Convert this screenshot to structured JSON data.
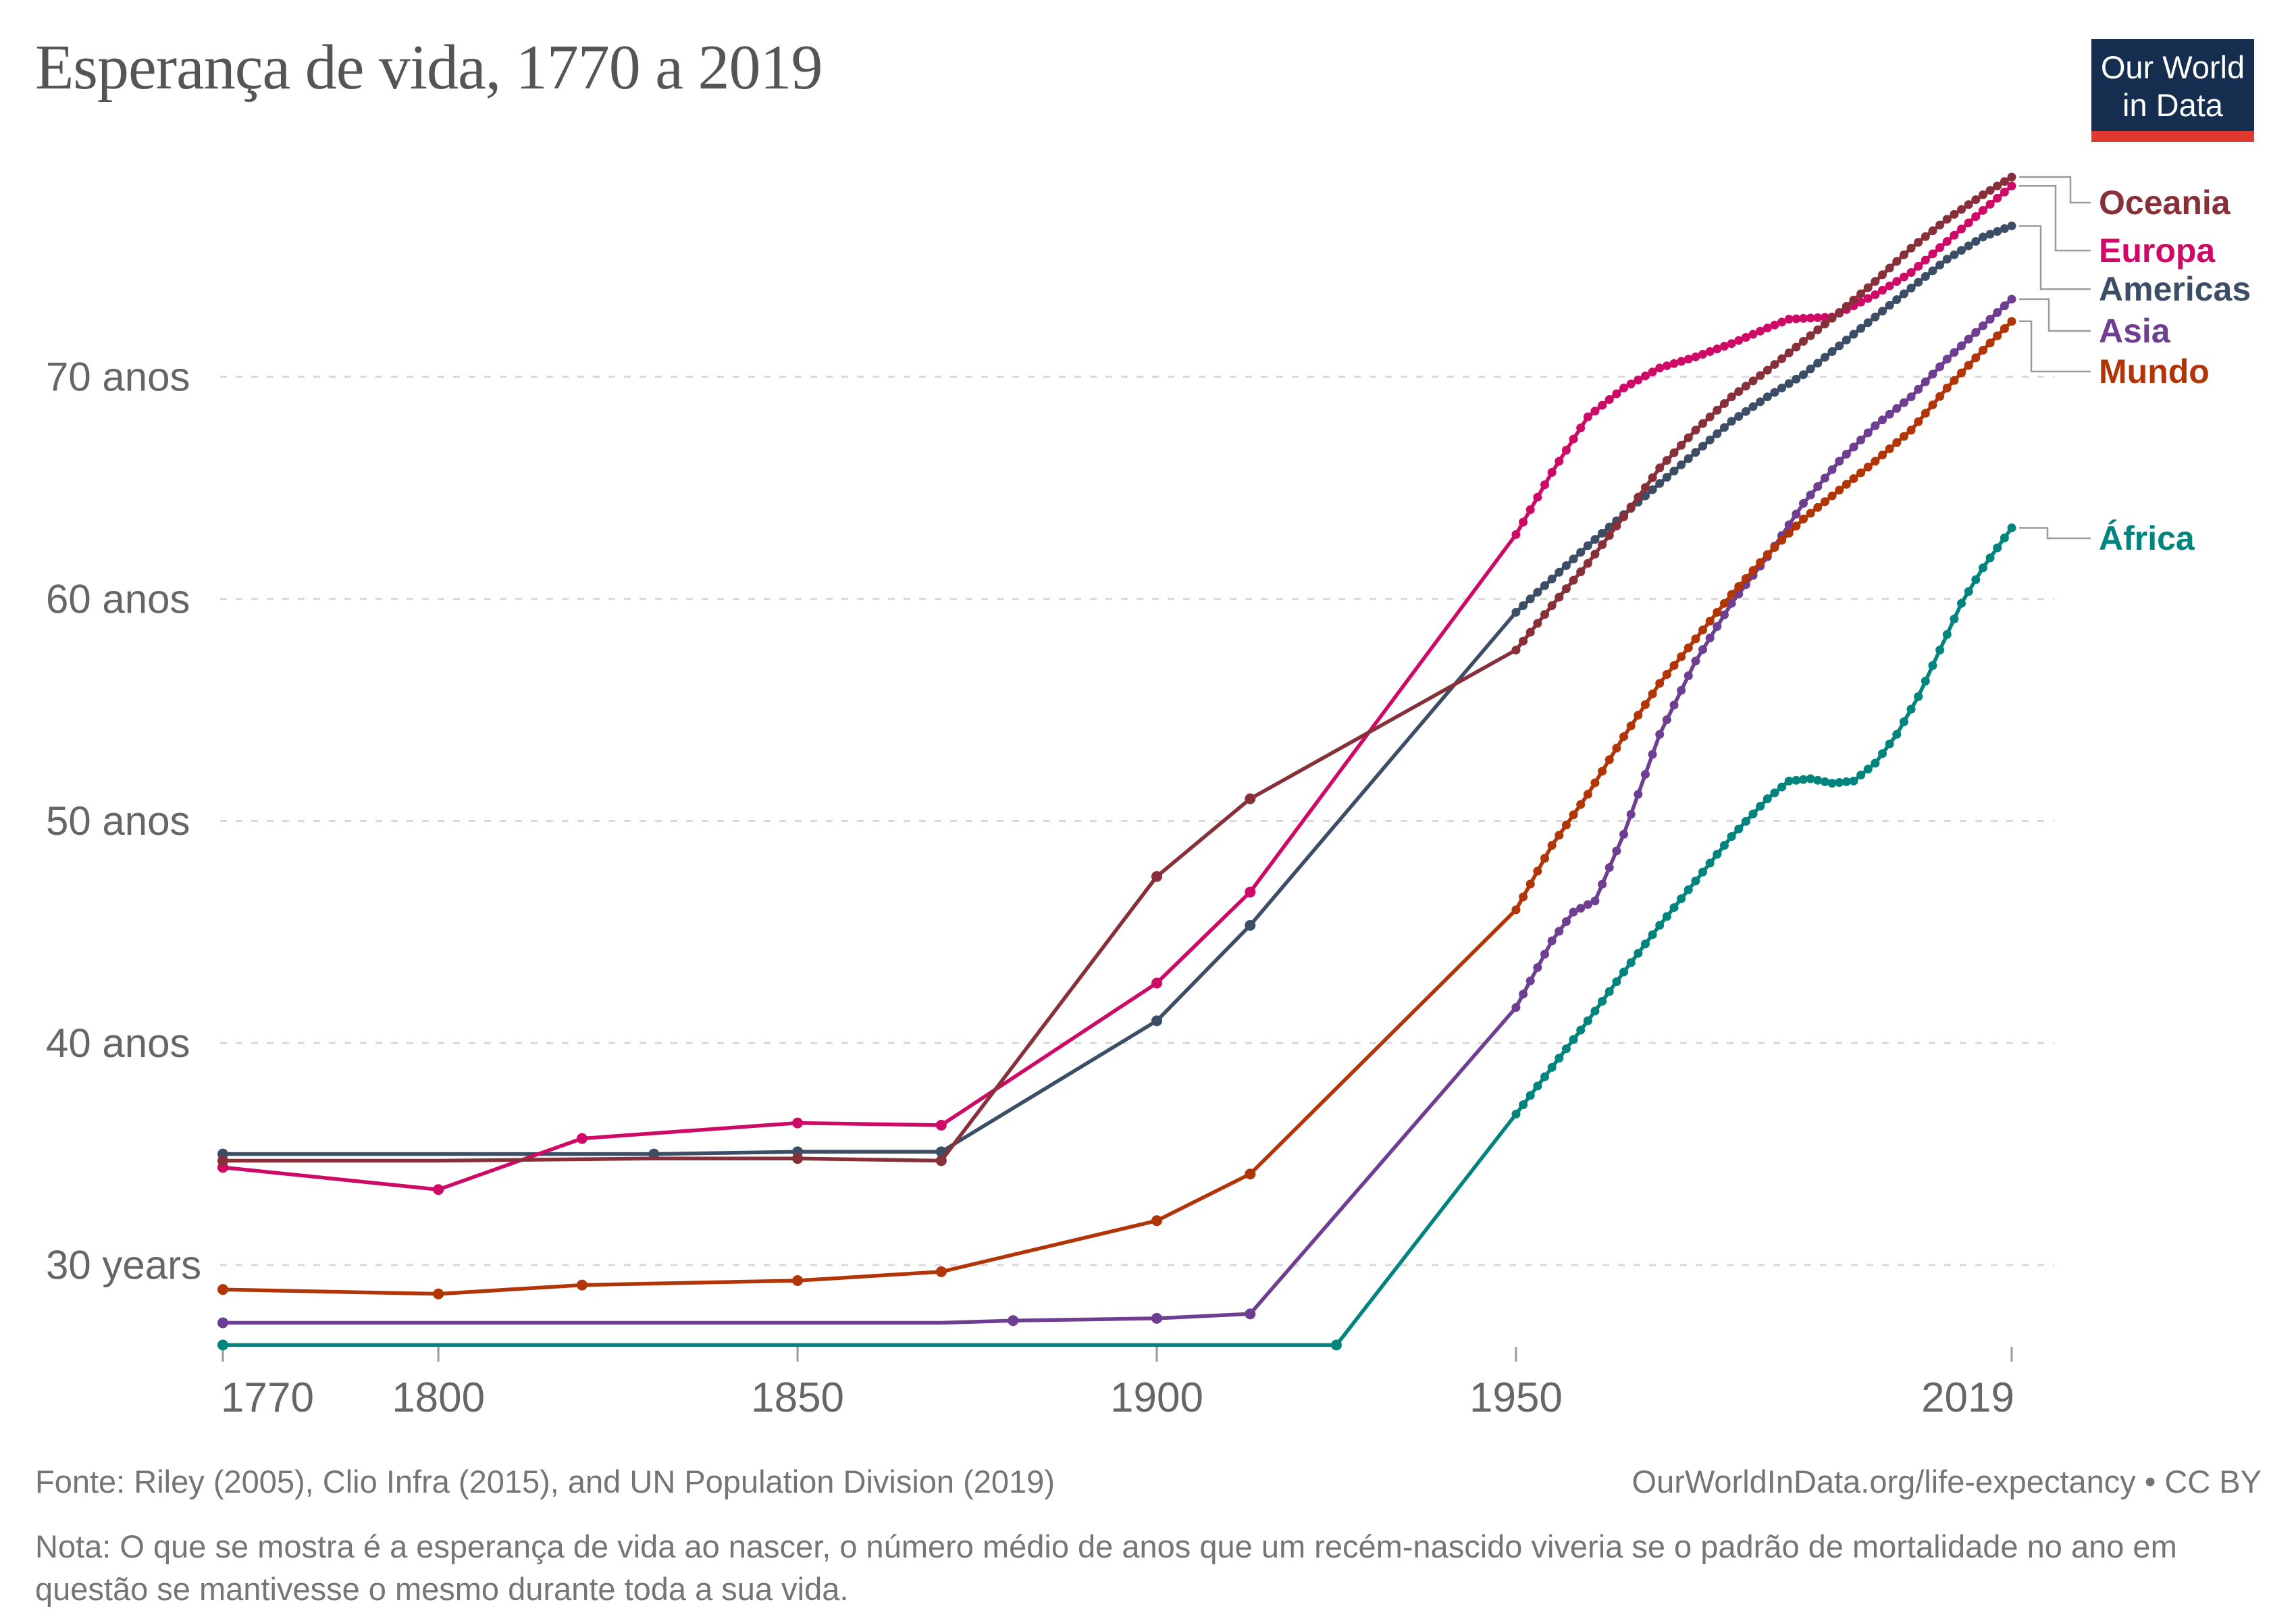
{
  "title": "Esperança de vida, 1770 a 2019",
  "logo": {
    "line1": "Our World",
    "line2": "in Data"
  },
  "footer": {
    "source": "Fonte: Riley (2005), Clio Infra (2015), and UN Population Division (2019)",
    "link": "OurWorldInData.org/life-expectancy • CC BY",
    "note": "Nota: O que se mostra é a esperança de vida ao nascer, o número médio de anos que um recém-nascido viveria se o padrão de mortalidade no ano em questão se mantivesse o mesmo durante toda a sua vida."
  },
  "chart_data": {
    "type": "line",
    "title": "Esperança de vida, 1770 a 2019",
    "xlabel": "",
    "ylabel": "",
    "xlim": [
      1770,
      2019
    ],
    "ylim": [
      26,
      80
    ],
    "grid": "dashed-horizontal",
    "legend_position": "right",
    "x_ticks": [
      {
        "year": 1770,
        "label": "1770"
      },
      {
        "year": 1800,
        "label": "1800"
      },
      {
        "year": 1850,
        "label": "1850"
      },
      {
        "year": 1900,
        "label": "1900"
      },
      {
        "year": 1950,
        "label": "1950"
      },
      {
        "year": 2019,
        "label": "2019"
      }
    ],
    "y_ticks": [
      {
        "value": 30,
        "label": "30 years"
      },
      {
        "value": 40,
        "label": "40 anos"
      },
      {
        "value": 50,
        "label": "50 anos"
      },
      {
        "value": 60,
        "label": "60 anos"
      },
      {
        "value": 70,
        "label": "70 anos"
      }
    ],
    "series": [
      {
        "id": "oceania",
        "name": "Oceania",
        "color": "#883039",
        "pre_dot_years": [
          1770,
          1850,
          1870,
          1900,
          1913
        ],
        "points": [
          [
            1770,
            34.7
          ],
          [
            1800,
            34.7
          ],
          [
            1830,
            34.8
          ],
          [
            1850,
            34.8
          ],
          [
            1870,
            34.7
          ],
          [
            1900,
            47.5
          ],
          [
            1913,
            51.0
          ],
          [
            1950,
            57.7
          ],
          [
            1955,
            59.7
          ],
          [
            1960,
            61.6
          ],
          [
            1965,
            63.7
          ],
          [
            1970,
            65.9
          ],
          [
            1975,
            67.6
          ],
          [
            1980,
            69.1
          ],
          [
            1985,
            70.3
          ],
          [
            1990,
            71.6
          ],
          [
            1995,
            72.9
          ],
          [
            2000,
            74.3
          ],
          [
            2005,
            75.8
          ],
          [
            2010,
            77.1
          ],
          [
            2015,
            78.2
          ],
          [
            2019,
            79.0
          ]
        ]
      },
      {
        "id": "europa",
        "name": "Europa",
        "color": "#CF0A66",
        "pre_dot_years": [
          1770,
          1800,
          1820,
          1850,
          1870,
          1900,
          1913
        ],
        "points": [
          [
            1770,
            34.4
          ],
          [
            1800,
            33.4
          ],
          [
            1820,
            35.7
          ],
          [
            1850,
            36.4
          ],
          [
            1870,
            36.3
          ],
          [
            1900,
            42.7
          ],
          [
            1913,
            46.8
          ],
          [
            1950,
            62.9
          ],
          [
            1955,
            65.7
          ],
          [
            1960,
            68.2
          ],
          [
            1965,
            69.5
          ],
          [
            1970,
            70.4
          ],
          [
            1975,
            70.9
          ],
          [
            1980,
            71.5
          ],
          [
            1985,
            72.2
          ],
          [
            1988,
            72.6
          ],
          [
            1994,
            72.7
          ],
          [
            1997,
            73.2
          ],
          [
            2000,
            73.7
          ],
          [
            2005,
            74.7
          ],
          [
            2010,
            76.1
          ],
          [
            2015,
            77.5
          ],
          [
            2019,
            78.6
          ]
        ]
      },
      {
        "id": "americas",
        "name": "Americas",
        "color": "#3C4E66",
        "pre_dot_years": [
          1770,
          1830,
          1850,
          1870,
          1900,
          1913
        ],
        "points": [
          [
            1770,
            35.0
          ],
          [
            1800,
            35.0
          ],
          [
            1830,
            35.0
          ],
          [
            1850,
            35.1
          ],
          [
            1870,
            35.1
          ],
          [
            1900,
            41.0
          ],
          [
            1913,
            45.3
          ],
          [
            1950,
            59.4
          ],
          [
            1955,
            60.9
          ],
          [
            1960,
            62.4
          ],
          [
            1965,
            63.8
          ],
          [
            1970,
            65.2
          ],
          [
            1975,
            66.6
          ],
          [
            1980,
            68.0
          ],
          [
            1985,
            69.1
          ],
          [
            1990,
            70.1
          ],
          [
            1995,
            71.4
          ],
          [
            2000,
            72.7
          ],
          [
            2005,
            74.0
          ],
          [
            2010,
            75.3
          ],
          [
            2015,
            76.3
          ],
          [
            2019,
            76.8
          ]
        ]
      },
      {
        "id": "asia",
        "name": "Asia",
        "color": "#6D3E91",
        "pre_dot_years": [
          1770,
          1880,
          1900,
          1913
        ],
        "points": [
          [
            1770,
            27.4
          ],
          [
            1800,
            27.4
          ],
          [
            1850,
            27.4
          ],
          [
            1870,
            27.4
          ],
          [
            1880,
            27.5
          ],
          [
            1900,
            27.6
          ],
          [
            1913,
            27.8
          ],
          [
            1950,
            41.6
          ],
          [
            1955,
            44.6
          ],
          [
            1958,
            45.9
          ],
          [
            1961,
            46.4
          ],
          [
            1965,
            49.4
          ],
          [
            1970,
            53.9
          ],
          [
            1975,
            57.2
          ],
          [
            1980,
            59.8
          ],
          [
            1985,
            61.9
          ],
          [
            1990,
            64.3
          ],
          [
            1995,
            66.2
          ],
          [
            2000,
            67.8
          ],
          [
            2005,
            69.1
          ],
          [
            2010,
            70.8
          ],
          [
            2015,
            72.3
          ],
          [
            2019,
            73.5
          ]
        ]
      },
      {
        "id": "mundo",
        "name": "Mundo",
        "color": "#B13507",
        "pre_dot_years": [
          1770,
          1800,
          1820,
          1850,
          1870,
          1900,
          1913
        ],
        "points": [
          [
            1770,
            28.9
          ],
          [
            1800,
            28.7
          ],
          [
            1820,
            29.1
          ],
          [
            1850,
            29.3
          ],
          [
            1870,
            29.7
          ],
          [
            1900,
            32.0
          ],
          [
            1913,
            34.1
          ],
          [
            1950,
            46.0
          ],
          [
            1955,
            48.9
          ],
          [
            1960,
            51.2
          ],
          [
            1965,
            53.8
          ],
          [
            1970,
            56.2
          ],
          [
            1975,
            58.2
          ],
          [
            1980,
            60.2
          ],
          [
            1985,
            62.0
          ],
          [
            1990,
            63.6
          ],
          [
            1995,
            64.9
          ],
          [
            2000,
            66.2
          ],
          [
            2005,
            67.6
          ],
          [
            2010,
            69.5
          ],
          [
            2015,
            71.2
          ],
          [
            2019,
            72.5
          ]
        ]
      },
      {
        "id": "africa",
        "name": "África",
        "color": "#00847E",
        "pre_dot_years": [
          1770,
          1925
        ],
        "points": [
          [
            1770,
            26.4
          ],
          [
            1870,
            26.4
          ],
          [
            1925,
            26.4
          ],
          [
            1950,
            36.8
          ],
          [
            1955,
            38.9
          ],
          [
            1960,
            41.0
          ],
          [
            1965,
            43.2
          ],
          [
            1970,
            45.3
          ],
          [
            1975,
            47.3
          ],
          [
            1980,
            49.3
          ],
          [
            1985,
            51.0
          ],
          [
            1988,
            51.8
          ],
          [
            1991,
            51.9
          ],
          [
            1994,
            51.7
          ],
          [
            1997,
            51.8
          ],
          [
            2000,
            52.6
          ],
          [
            2003,
            53.9
          ],
          [
            2006,
            55.6
          ],
          [
            2009,
            57.7
          ],
          [
            2012,
            59.8
          ],
          [
            2015,
            61.4
          ],
          [
            2019,
            63.2
          ]
        ]
      }
    ]
  }
}
